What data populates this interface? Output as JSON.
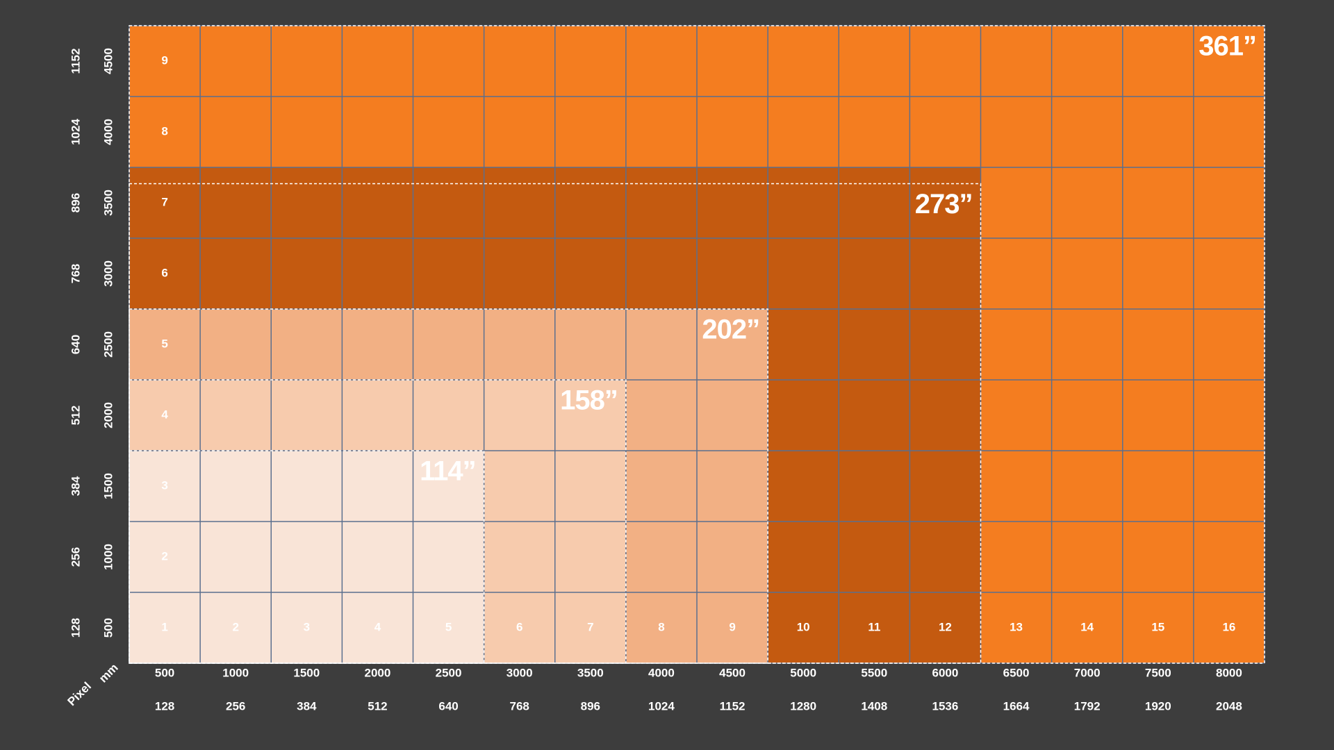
{
  "axis_labels": {
    "pixel": "Pixel",
    "mm": "mm"
  },
  "columns": [
    {
      "number": 1,
      "mm": 500,
      "pixel": 128
    },
    {
      "number": 2,
      "mm": 1000,
      "pixel": 256
    },
    {
      "number": 3,
      "mm": 1500,
      "pixel": 384
    },
    {
      "number": 4,
      "mm": 2000,
      "pixel": 512
    },
    {
      "number": 5,
      "mm": 2500,
      "pixel": 640
    },
    {
      "number": 6,
      "mm": 3000,
      "pixel": 768
    },
    {
      "number": 7,
      "mm": 3500,
      "pixel": 896
    },
    {
      "number": 8,
      "mm": 4000,
      "pixel": 1024
    },
    {
      "number": 9,
      "mm": 4500,
      "pixel": 1152
    },
    {
      "number": 10,
      "mm": 5000,
      "pixel": 1280
    },
    {
      "number": 11,
      "mm": 5500,
      "pixel": 1408
    },
    {
      "number": 12,
      "mm": 6000,
      "pixel": 1536
    },
    {
      "number": 13,
      "mm": 6500,
      "pixel": 1664
    },
    {
      "number": 14,
      "mm": 7000,
      "pixel": 1792
    },
    {
      "number": 15,
      "mm": 7500,
      "pixel": 1920
    },
    {
      "number": 16,
      "mm": 8000,
      "pixel": 2048
    }
  ],
  "rows": [
    {
      "mm": 500,
      "pixel": 128
    },
    {
      "number": 2,
      "mm": 1000,
      "pixel": 256
    },
    {
      "number": 3,
      "mm": 1500,
      "pixel": 384
    },
    {
      "number": 4,
      "mm": 2000,
      "pixel": 512
    },
    {
      "number": 5,
      "mm": 2500,
      "pixel": 640
    },
    {
      "number": 6,
      "mm": 3000,
      "pixel": 768
    },
    {
      "number": 7,
      "mm": 3500,
      "pixel": 896
    },
    {
      "number": 8,
      "mm": 4000,
      "pixel": 1024
    },
    {
      "number": 9,
      "mm": 4500,
      "pixel": 1152
    }
  ],
  "sizes": [
    "114”",
    "158”",
    "202”",
    "273”",
    "361”"
  ]
}
